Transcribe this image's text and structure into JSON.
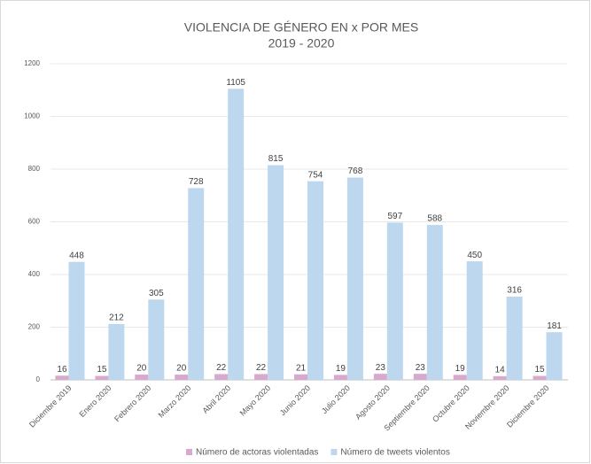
{
  "chart_data": {
    "type": "bar",
    "title": "VIOLENCIA DE GÉNERO EN x POR MES",
    "subtitle": "2019 - 2020",
    "categories": [
      "Diciembre 2019",
      "Enero 2020",
      "Febrero 2020",
      "Marzo 2020",
      "Abril 2020",
      "Mayo 2020",
      "Junio 2020",
      "Julio 2020",
      "Agosto 2020",
      "Septiembre 2020",
      "Octubre 2020",
      "Noviembre 2020",
      "Diciembre 2020"
    ],
    "series": [
      {
        "name": "Número de actoras violentadas",
        "color": "#d8a9cc",
        "values": [
          16,
          15,
          20,
          20,
          22,
          22,
          21,
          19,
          23,
          23,
          19,
          14,
          15
        ]
      },
      {
        "name": "Número de tweets violentos",
        "color": "#bdd7ee",
        "values": [
          448,
          212,
          305,
          728,
          1105,
          815,
          754,
          768,
          597,
          588,
          450,
          316,
          181
        ]
      }
    ],
    "ylim": [
      0,
      1200
    ],
    "yticks": [
      0,
      200,
      400,
      600,
      800,
      1000,
      1200
    ],
    "grid": true,
    "legend": "bottom"
  }
}
